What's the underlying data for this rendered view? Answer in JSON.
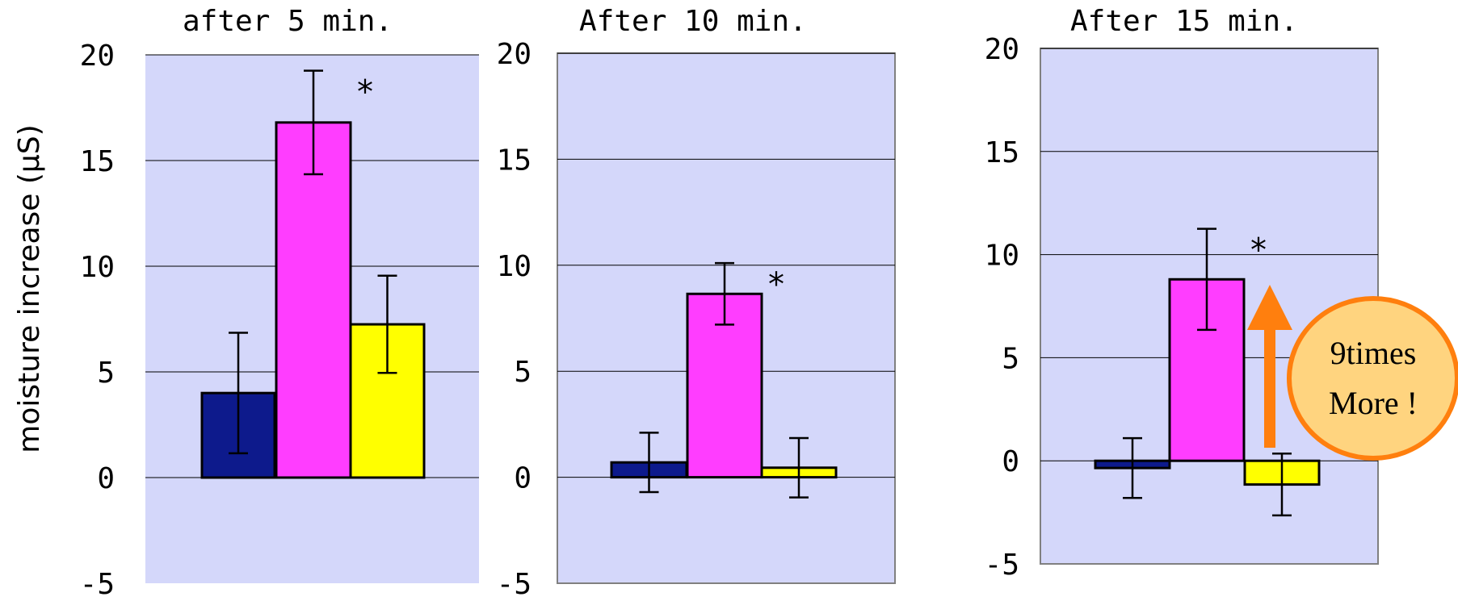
{
  "chart_data": [
    {
      "type": "bar",
      "title": "after 5 min.",
      "ylabel": "moisture increase (μS)",
      "ylim": [
        -5,
        20
      ],
      "yticks": [
        "20",
        "15",
        "10",
        "5",
        "0",
        "-5"
      ],
      "grid": true,
      "series": [
        {
          "color": "#0d1a8c",
          "value": 4.0,
          "error": 2.85
        },
        {
          "color": "#ff3dff",
          "value": 16.8,
          "error": 2.45
        },
        {
          "color": "#ffff00",
          "value": 7.25,
          "error": 2.3
        }
      ],
      "annotations": [
        {
          "text": "*",
          "series_index": 1
        }
      ]
    },
    {
      "type": "bar",
      "title": "After 10 min.",
      "ylim": [
        -5,
        20
      ],
      "yticks": [
        "20",
        "15",
        "10",
        "5",
        "0",
        "-5"
      ],
      "grid": true,
      "series": [
        {
          "color": "#0d1a8c",
          "value": 0.7,
          "error": 1.4
        },
        {
          "color": "#ff3dff",
          "value": 8.65,
          "error": 1.45
        },
        {
          "color": "#ffff00",
          "value": 0.45,
          "error": 1.4
        }
      ],
      "annotations": [
        {
          "text": "*",
          "series_index": 1
        }
      ]
    },
    {
      "type": "bar",
      "title": "After 15 min.",
      "ylim": [
        -5,
        20
      ],
      "yticks": [
        "20",
        "15",
        "10",
        "5",
        "0",
        "-5"
      ],
      "grid": true,
      "series": [
        {
          "color": "#0d1a8c",
          "value": -0.35,
          "error": 1.45
        },
        {
          "color": "#ff3dff",
          "value": 8.8,
          "error": 2.45
        },
        {
          "color": "#ffff00",
          "value": -1.15,
          "error": 1.5
        }
      ],
      "annotations": [
        {
          "text": "*",
          "series_index": 1
        }
      ],
      "callout": {
        "line1": "9times",
        "line2": "More !",
        "arrow_color": "#ff7f0e",
        "fill": "#ffd47f"
      }
    }
  ],
  "colors": {
    "plot_background": "#d4d7fa",
    "grid": "#000000"
  }
}
